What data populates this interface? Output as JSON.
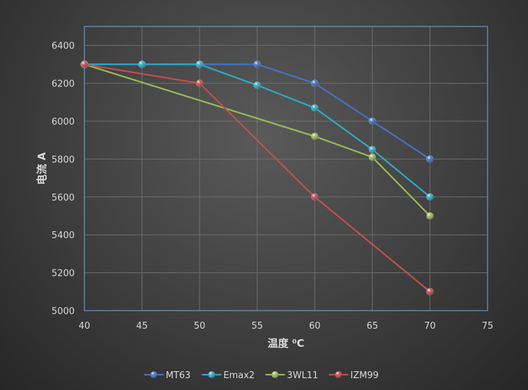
{
  "chart_data": {
    "type": "line",
    "xlabel": "温度 ⁰C",
    "ylabel": "电流 A",
    "xlim": [
      40,
      75
    ],
    "ylim": [
      5000,
      6500
    ],
    "xticks": [
      40,
      45,
      50,
      55,
      60,
      65,
      70,
      75
    ],
    "yticks": [
      5000,
      5200,
      5400,
      5600,
      5800,
      6000,
      6200,
      6400
    ],
    "grid": true,
    "legend_position": "bottom",
    "series": [
      {
        "name": "MT63",
        "color": "#4472c4",
        "x": [
          40,
          45,
          50,
          55,
          60,
          65,
          70
        ],
        "y": [
          6300,
          6300,
          6300,
          6300,
          6200,
          6000,
          5800
        ]
      },
      {
        "name": "Emax2",
        "color": "#2fa8c6",
        "x": [
          40,
          45,
          50,
          55,
          60,
          65,
          70
        ],
        "y": [
          6300,
          6300,
          6300,
          6190,
          6070,
          5850,
          5600
        ]
      },
      {
        "name": "3WL11",
        "color": "#98b954",
        "x": [
          40,
          60,
          65,
          70
        ],
        "y": [
          6300,
          5920,
          5810,
          5500
        ]
      },
      {
        "name": "IZM99",
        "color": "#c0504d",
        "x": [
          40,
          50,
          60,
          70
        ],
        "y": [
          6300,
          6200,
          5600,
          5100
        ]
      }
    ]
  }
}
